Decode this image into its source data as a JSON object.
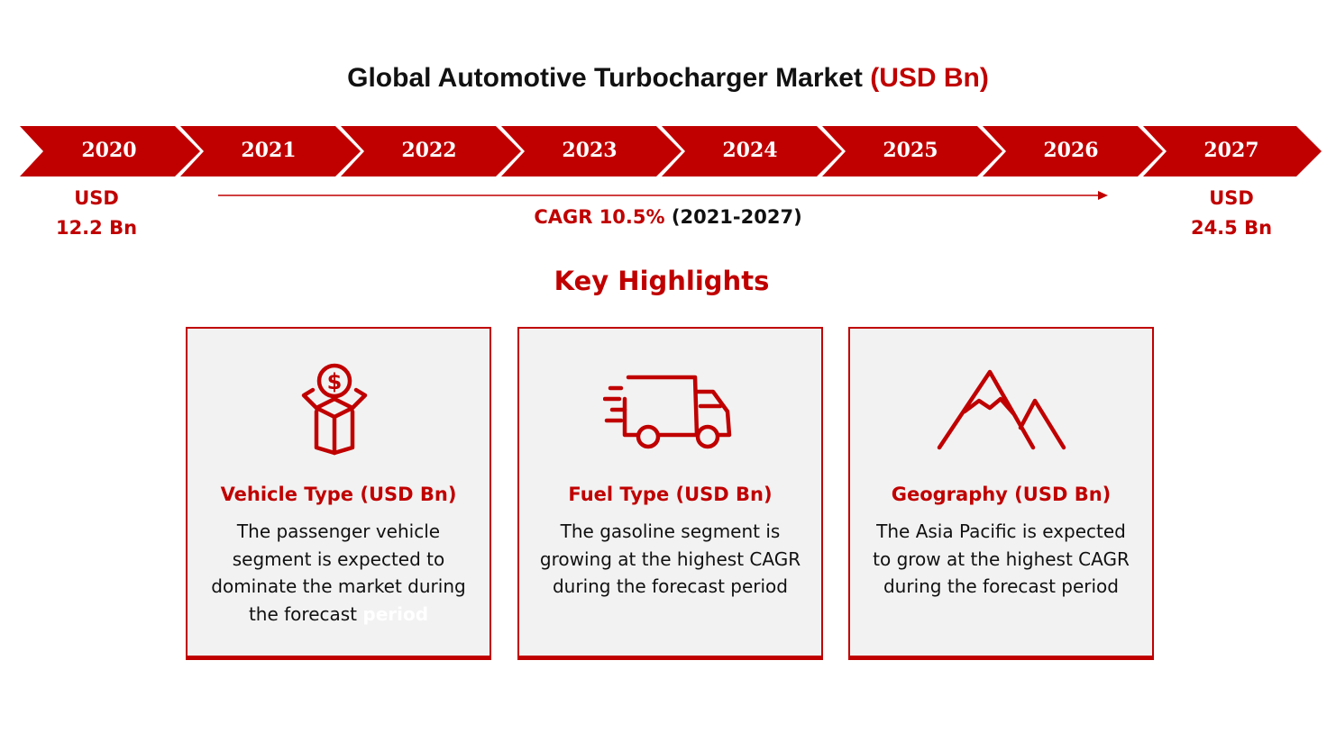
{
  "title": {
    "main": "Global Automotive Turbocharger Market",
    "unit": "(USD Bn)"
  },
  "timeline": {
    "years": [
      "2020",
      "2021",
      "2022",
      "2023",
      "2024",
      "2025",
      "2026",
      "2027"
    ],
    "start_value": {
      "currency": "USD",
      "amount": "12.2 Bn"
    },
    "end_value": {
      "currency": "USD",
      "amount": "24.5 Bn"
    },
    "cagr": {
      "label": "CAGR 10.5%",
      "period": "(2021-2027)"
    }
  },
  "highlights": {
    "title": "Key Highlights",
    "cards": [
      {
        "icon": "money-box-icon",
        "title": "Vehicle Type (USD Bn)",
        "text_lines": [
          "The passenger vehicle",
          "segment is expected to",
          "dominate the market during"
        ],
        "text_last": "the forecast",
        "text_faded": "period"
      },
      {
        "icon": "delivery-truck-icon",
        "title": "Fuel Type (USD Bn)",
        "text_lines": [
          "The gasoline segment is",
          "growing at the highest CAGR",
          "during the forecast period"
        ]
      },
      {
        "icon": "mountains-icon",
        "title": "Geography (USD Bn)",
        "text_lines": [
          "The Asia Pacific is expected",
          "to grow at the highest CAGR",
          "during the forecast period"
        ]
      }
    ]
  },
  "colors": {
    "accent": "#c00000",
    "card_bg": "#f2f2f2",
    "text": "#111111"
  }
}
